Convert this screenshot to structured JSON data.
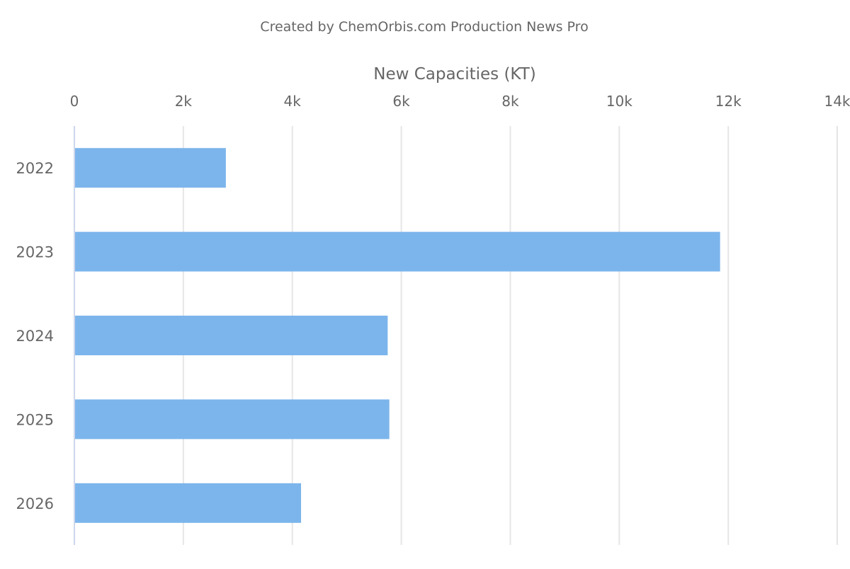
{
  "chart_data": {
    "type": "bar",
    "orientation": "horizontal",
    "caption": "Created by ChemOrbis.com Production News Pro",
    "title": "",
    "xlabel": "New Capacities (KT)",
    "ylabel": "",
    "categories": [
      "2022",
      "2023",
      "2024",
      "2025",
      "2026"
    ],
    "values": [
      2780,
      11850,
      5750,
      5780,
      4160
    ],
    "xlim": [
      0,
      14000
    ],
    "x_ticks": [
      0,
      2000,
      4000,
      6000,
      8000,
      10000,
      12000,
      14000
    ],
    "x_tick_labels": [
      "0",
      "2k",
      "4k",
      "6k",
      "8k",
      "10k",
      "12k",
      "14k"
    ],
    "x_axis_position": "top",
    "grid": true,
    "legend": "none",
    "bar_color": "#7cb5ec",
    "grid_color": "#e6e6e6",
    "axis_line_color": "#ccd6eb",
    "text_color": "#666666"
  }
}
